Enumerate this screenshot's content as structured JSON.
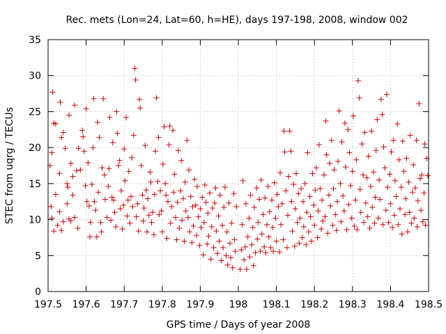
{
  "chart_data": {
    "type": "scatter",
    "title": "Rec. mets (Lon=24, Lat=60, h=HE), days 197-198, 2008, window 002",
    "xlabel": "GPS time / Days of year 2008",
    "ylabel": "STEC from uqrg / TECUs",
    "xlim": [
      197.5,
      198.5
    ],
    "ylim": [
      0,
      35
    ],
    "xticks": [
      197.5,
      197.6,
      197.7,
      197.8,
      197.9,
      198,
      198.1,
      198.2,
      198.3,
      198.4,
      198.5
    ],
    "xtick_labels": [
      "197.5",
      "197.6",
      "197.7",
      "197.8",
      "197.9",
      "198",
      "198.1",
      "198.2",
      "198.3",
      "198.4",
      "198.5"
    ],
    "yticks": [
      0,
      5,
      10,
      15,
      20,
      25,
      30,
      35
    ],
    "ytick_labels": [
      "0",
      "5",
      "10",
      "15",
      "20",
      "25",
      "30",
      "35"
    ],
    "grid": true,
    "marker": "+",
    "color": "#cc0000",
    "points": [
      [
        197.505,
        17.5
      ],
      [
        197.51,
        19.3
      ],
      [
        197.512,
        27.7
      ],
      [
        197.515,
        23.4
      ],
      [
        197.52,
        23.3
      ],
      [
        197.508,
        11.8
      ],
      [
        197.51,
        10.2
      ],
      [
        197.515,
        8.4
      ],
      [
        197.52,
        13.5
      ],
      [
        197.525,
        9.2
      ],
      [
        197.53,
        16.4
      ],
      [
        197.532,
        26.3
      ],
      [
        197.535,
        21.4
      ],
      [
        197.54,
        22.1
      ],
      [
        197.545,
        19.9
      ],
      [
        197.55,
        15.0
      ],
      [
        197.552,
        14.5
      ],
      [
        197.555,
        24.5
      ],
      [
        197.56,
        17.8
      ],
      [
        197.565,
        16.0
      ],
      [
        197.57,
        25.9
      ],
      [
        197.53,
        11.1
      ],
      [
        197.535,
        8.5
      ],
      [
        197.54,
        9.7
      ],
      [
        197.55,
        12.2
      ],
      [
        197.555,
        10.1
      ],
      [
        197.56,
        9.8
      ],
      [
        197.565,
        13.4
      ],
      [
        197.57,
        10.3
      ],
      [
        197.575,
        16.8
      ],
      [
        197.578,
        8.8
      ],
      [
        197.58,
        19.9
      ],
      [
        197.585,
        16.9
      ],
      [
        197.59,
        22.4
      ],
      [
        197.592,
        21.5
      ],
      [
        197.595,
        19.5
      ],
      [
        197.598,
        14.7
      ],
      [
        197.6,
        25.4
      ],
      [
        197.602,
        12.5
      ],
      [
        197.605,
        17.9
      ],
      [
        197.608,
        11.9
      ],
      [
        197.61,
        7.6
      ],
      [
        197.612,
        9.6
      ],
      [
        197.615,
        14.9
      ],
      [
        197.618,
        20.0
      ],
      [
        197.62,
        26.8
      ],
      [
        197.622,
        12.5
      ],
      [
        197.625,
        11.3
      ],
      [
        197.628,
        7.6
      ],
      [
        197.63,
        23.5
      ],
      [
        197.632,
        13.8
      ],
      [
        197.635,
        21.4
      ],
      [
        197.638,
        9.6
      ],
      [
        197.64,
        8.3
      ],
      [
        197.642,
        17.2
      ],
      [
        197.645,
        26.8
      ],
      [
        197.648,
        16.2
      ],
      [
        197.65,
        12.8
      ],
      [
        197.655,
        10.3
      ],
      [
        197.658,
        14.6
      ],
      [
        197.66,
        17.1
      ],
      [
        197.662,
        24.2
      ],
      [
        197.665,
        9.9
      ],
      [
        197.668,
        13.1
      ],
      [
        197.67,
        20.7
      ],
      [
        197.672,
        12.7
      ],
      [
        197.675,
        11.0
      ],
      [
        197.678,
        9.0
      ],
      [
        197.68,
        25.0
      ],
      [
        197.682,
        22.0
      ],
      [
        197.685,
        17.5
      ],
      [
        197.688,
        18.2
      ],
      [
        197.69,
        11.5
      ],
      [
        197.692,
        14.0
      ],
      [
        197.695,
        8.7
      ],
      [
        197.698,
        12.0
      ],
      [
        197.7,
        19.8
      ],
      [
        197.702,
        15.4
      ],
      [
        197.705,
        24.2
      ],
      [
        197.708,
        10.5
      ],
      [
        197.71,
        12.7
      ],
      [
        197.712,
        16.7
      ],
      [
        197.715,
        9.5
      ],
      [
        197.718,
        13.2
      ],
      [
        197.72,
        18.6
      ],
      [
        197.722,
        11.8
      ],
      [
        197.725,
        21.7
      ],
      [
        197.728,
        31.0
      ],
      [
        197.73,
        29.4
      ],
      [
        197.732,
        10.4
      ],
      [
        197.735,
        12.2
      ],
      [
        197.738,
        8.4
      ],
      [
        197.74,
        26.7
      ],
      [
        197.742,
        25.5
      ],
      [
        197.745,
        17.5
      ],
      [
        197.748,
        13.4
      ],
      [
        197.75,
        9.8
      ],
      [
        197.752,
        11.6
      ],
      [
        197.755,
        20.3
      ],
      [
        197.758,
        14.1
      ],
      [
        197.76,
        8.3
      ],
      [
        197.762,
        12.9
      ],
      [
        197.765,
        10.6
      ],
      [
        197.768,
        16.6
      ],
      [
        197.77,
        15.2
      ],
      [
        197.772,
        9.6
      ],
      [
        197.775,
        11.0
      ],
      [
        197.778,
        7.9
      ],
      [
        197.78,
        13.5
      ],
      [
        197.782,
        19.5
      ],
      [
        197.785,
        26.9
      ],
      [
        197.788,
        15.3
      ],
      [
        197.79,
        21.4
      ],
      [
        197.792,
        10.7
      ],
      [
        197.795,
        14.0
      ],
      [
        197.798,
        11.2
      ],
      [
        197.8,
        8.3
      ],
      [
        197.802,
        17.7
      ],
      [
        197.805,
        22.9
      ],
      [
        197.808,
        15.0
      ],
      [
        197.81,
        13.4
      ],
      [
        197.812,
        7.4
      ],
      [
        197.815,
        12.5
      ],
      [
        197.818,
        20.4
      ],
      [
        197.82,
        23.0
      ],
      [
        197.822,
        9.5
      ],
      [
        197.825,
        11.8
      ],
      [
        197.828,
        22.4
      ],
      [
        197.83,
        13.8
      ],
      [
        197.832,
        16.3
      ],
      [
        197.835,
        10.3
      ],
      [
        197.838,
        7.2
      ],
      [
        197.84,
        12.4
      ],
      [
        197.842,
        19.6
      ],
      [
        197.845,
        8.8
      ],
      [
        197.848,
        14.0
      ],
      [
        197.85,
        18.2
      ],
      [
        197.852,
        9.9
      ],
      [
        197.855,
        12.9
      ],
      [
        197.858,
        7.0
      ],
      [
        197.86,
        15.2
      ],
      [
        197.862,
        11.2
      ],
      [
        197.865,
        21.0
      ],
      [
        197.868,
        10.3
      ],
      [
        197.87,
        16.9
      ],
      [
        197.872,
        8.3
      ],
      [
        197.875,
        13.2
      ],
      [
        197.878,
        6.8
      ],
      [
        197.88,
        11.8
      ],
      [
        197.882,
        9.1
      ],
      [
        197.885,
        15.6
      ],
      [
        197.888,
        12.0
      ],
      [
        197.89,
        7.8
      ],
      [
        197.892,
        14.6
      ],
      [
        197.895,
        10.4
      ],
      [
        197.898,
        6.4
      ],
      [
        197.9,
        11.5
      ],
      [
        197.902,
        8.9
      ],
      [
        197.905,
        13.1
      ],
      [
        197.908,
        5.1
      ],
      [
        197.91,
        9.6
      ],
      [
        197.912,
        14.8
      ],
      [
        197.915,
        12.4
      ],
      [
        197.918,
        6.6
      ],
      [
        197.92,
        10.9
      ],
      [
        197.922,
        7.7
      ],
      [
        197.925,
        13.7
      ],
      [
        197.928,
        4.5
      ],
      [
        197.93,
        9.0
      ],
      [
        197.932,
        11.6
      ],
      [
        197.935,
        6.1
      ],
      [
        197.938,
        12.3
      ],
      [
        197.94,
        14.4
      ],
      [
        197.942,
        8.4
      ],
      [
        197.945,
        5.3
      ],
      [
        197.948,
        10.5
      ],
      [
        197.95,
        7.0
      ],
      [
        197.952,
        13.4
      ],
      [
        197.955,
        4.3
      ],
      [
        197.958,
        9.2
      ],
      [
        197.96,
        6.1
      ],
      [
        197.962,
        11.7
      ],
      [
        197.965,
        14.5
      ],
      [
        197.968,
        5.0
      ],
      [
        197.97,
        8.3
      ],
      [
        197.972,
        3.7
      ],
      [
        197.975,
        12.3
      ],
      [
        197.978,
        6.7
      ],
      [
        197.98,
        4.7
      ],
      [
        197.982,
        9.5
      ],
      [
        197.985,
        3.3
      ],
      [
        197.988,
        13.6
      ],
      [
        197.99,
        7.2
      ],
      [
        197.992,
        5.6
      ],
      [
        197.995,
        11.8
      ],
      [
        198.005,
        3.1
      ],
      [
        198.008,
        5.8
      ],
      [
        198.01,
        9.3
      ],
      [
        198.012,
        15.4
      ],
      [
        198.015,
        4.4
      ],
      [
        198.018,
        6.2
      ],
      [
        198.02,
        12.2
      ],
      [
        198.022,
        3.1
      ],
      [
        198.025,
        7.6
      ],
      [
        198.028,
        10.2
      ],
      [
        198.03,
        4.8
      ],
      [
        198.032,
        13.4
      ],
      [
        198.035,
        6.5
      ],
      [
        198.038,
        8.9
      ],
      [
        198.04,
        3.6
      ],
      [
        198.042,
        11.7
      ],
      [
        198.045,
        5.4
      ],
      [
        198.048,
        14.4
      ],
      [
        198.05,
        7.3
      ],
      [
        198.052,
        9.6
      ],
      [
        198.055,
        12.8
      ],
      [
        198.058,
        5.6
      ],
      [
        198.06,
        15.5
      ],
      [
        198.062,
        8.0
      ],
      [
        198.065,
        10.7
      ],
      [
        198.068,
        6.2
      ],
      [
        198.07,
        13.0
      ],
      [
        198.072,
        5.4
      ],
      [
        198.075,
        9.3
      ],
      [
        198.078,
        14.6
      ],
      [
        198.08,
        7.6
      ],
      [
        198.082,
        11.1
      ],
      [
        198.085,
        6.1
      ],
      [
        198.088,
        12.7
      ],
      [
        198.09,
        8.9
      ],
      [
        198.092,
        5.6
      ],
      [
        198.095,
        15.1
      ],
      [
        198.098,
        10.2
      ],
      [
        198.1,
        7.0
      ],
      [
        198.102,
        13.5
      ],
      [
        198.105,
        11.8
      ],
      [
        198.108,
        5.5
      ],
      [
        198.11,
        16.5
      ],
      [
        198.112,
        9.3
      ],
      [
        198.115,
        12.2
      ],
      [
        198.118,
        7.2
      ],
      [
        198.12,
        22.3
      ],
      [
        198.122,
        19.4
      ],
      [
        198.125,
        14.0
      ],
      [
        198.128,
        6.1
      ],
      [
        198.13,
        10.6
      ],
      [
        198.132,
        16.0
      ],
      [
        198.135,
        22.3
      ],
      [
        198.138,
        19.5
      ],
      [
        198.14,
        12.5
      ],
      [
        198.142,
        8.4
      ],
      [
        198.145,
        14.9
      ],
      [
        198.148,
        6.3
      ],
      [
        198.15,
        11.5
      ],
      [
        198.152,
        16.4
      ],
      [
        198.155,
        9.6
      ],
      [
        198.158,
        13.6
      ],
      [
        198.16,
        6.7
      ],
      [
        198.162,
        10.2
      ],
      [
        198.165,
        14.3
      ],
      [
        198.168,
        7.5
      ],
      [
        198.17,
        12.5
      ],
      [
        198.172,
        9.0
      ],
      [
        198.175,
        15.0
      ],
      [
        198.178,
        6.5
      ],
      [
        198.18,
        11.0
      ],
      [
        198.182,
        19.3
      ],
      [
        198.185,
        8.3
      ],
      [
        198.188,
        13.2
      ],
      [
        198.19,
        10.4
      ],
      [
        198.192,
        7.0
      ],
      [
        198.195,
        16.4
      ],
      [
        198.198,
        12.0
      ],
      [
        198.2,
        9.2
      ],
      [
        198.202,
        14.1
      ],
      [
        198.205,
        17.2
      ],
      [
        198.208,
        7.5
      ],
      [
        198.21,
        11.2
      ],
      [
        198.212,
        20.4
      ],
      [
        198.215,
        14.3
      ],
      [
        198.218,
        8.7
      ],
      [
        198.22,
        12.7
      ],
      [
        198.222,
        9.8
      ],
      [
        198.225,
        16.2
      ],
      [
        198.228,
        10.4
      ],
      [
        198.23,
        23.7
      ],
      [
        198.232,
        19.0
      ],
      [
        198.235,
        8.1
      ],
      [
        198.238,
        13.4
      ],
      [
        198.24,
        17.8
      ],
      [
        198.242,
        11.9
      ],
      [
        198.245,
        21.0
      ],
      [
        198.248,
        9.2
      ],
      [
        198.25,
        14.3
      ],
      [
        198.252,
        16.9
      ],
      [
        198.255,
        10.7
      ],
      [
        198.258,
        8.5
      ],
      [
        198.26,
        12.5
      ],
      [
        198.262,
        18.1
      ],
      [
        198.265,
        25.1
      ],
      [
        198.268,
        15.0
      ],
      [
        198.27,
        9.7
      ],
      [
        198.272,
        20.8
      ],
      [
        198.275,
        13.3
      ],
      [
        198.278,
        11.2
      ],
      [
        198.28,
        23.4
      ],
      [
        198.282,
        17.3
      ],
      [
        198.285,
        8.6
      ],
      [
        198.288,
        22.5
      ],
      [
        198.29,
        12.1
      ],
      [
        198.292,
        19.3
      ],
      [
        198.295,
        14.7
      ],
      [
        198.298,
        10.2
      ],
      [
        198.3,
        16.7
      ],
      [
        198.302,
        24.4
      ],
      [
        198.305,
        9.1
      ],
      [
        198.308,
        12.7
      ],
      [
        198.31,
        18.3
      ],
      [
        198.312,
        8.6
      ],
      [
        198.315,
        29.3
      ],
      [
        198.318,
        26.9
      ],
      [
        198.32,
        14.2
      ],
      [
        198.322,
        11.0
      ],
      [
        198.325,
        20.5
      ],
      [
        198.328,
        16.2
      ],
      [
        198.33,
        9.6
      ],
      [
        198.332,
        22.1
      ],
      [
        198.335,
        12.3
      ],
      [
        198.338,
        15.8
      ],
      [
        198.34,
        10.4
      ],
      [
        198.342,
        18.8
      ],
      [
        198.345,
        8.8
      ],
      [
        198.348,
        14.6
      ],
      [
        198.35,
        22.3
      ],
      [
        198.352,
        11.7
      ],
      [
        198.355,
        16.6
      ],
      [
        198.358,
        9.5
      ],
      [
        198.36,
        13.1
      ],
      [
        198.362,
        19.6
      ],
      [
        198.365,
        23.9
      ],
      [
        198.368,
        10.2
      ],
      [
        198.37,
        15.5
      ],
      [
        198.372,
        12.8
      ],
      [
        198.375,
        26.7
      ],
      [
        198.378,
        24.6
      ],
      [
        198.38,
        9.3
      ],
      [
        198.382,
        20.1
      ],
      [
        198.385,
        17.2
      ],
      [
        198.388,
        11.3
      ],
      [
        198.39,
        27.4
      ],
      [
        198.392,
        14.5
      ],
      [
        198.395,
        9.6
      ],
      [
        198.398,
        16.3
      ],
      [
        198.4,
        12.2
      ],
      [
        198.402,
        19.4
      ],
      [
        198.405,
        8.9
      ],
      [
        198.408,
        21.0
      ],
      [
        198.41,
        10.6
      ],
      [
        198.412,
        15.4
      ],
      [
        198.415,
        13.2
      ],
      [
        198.418,
        23.3
      ],
      [
        198.42,
        9.3
      ],
      [
        198.422,
        18.3
      ],
      [
        198.425,
        11.5
      ],
      [
        198.428,
        14.5
      ],
      [
        198.43,
        8.0
      ],
      [
        198.432,
        20.9
      ],
      [
        198.435,
        16.7
      ],
      [
        198.438,
        10.7
      ],
      [
        198.44,
        12.9
      ],
      [
        198.442,
        18.5
      ],
      [
        198.445,
        8.3
      ],
      [
        198.448,
        15.2
      ],
      [
        198.45,
        11.0
      ],
      [
        198.452,
        21.7
      ],
      [
        198.455,
        9.5
      ],
      [
        198.458,
        13.8
      ],
      [
        198.46,
        17.6
      ],
      [
        198.462,
        10.2
      ],
      [
        198.465,
        14.4
      ],
      [
        198.468,
        21.0
      ],
      [
        198.47,
        9.0
      ],
      [
        198.472,
        12.6
      ],
      [
        198.475,
        26.1
      ],
      [
        198.478,
        15.7
      ],
      [
        198.48,
        11.3
      ],
      [
        198.482,
        16.2
      ],
      [
        198.485,
        9.7
      ],
      [
        198.488,
        13.7
      ],
      [
        198.49,
        20.5
      ],
      [
        198.492,
        9.2
      ],
      [
        198.495,
        18.5
      ],
      [
        198.498,
        16.1
      ]
    ]
  }
}
